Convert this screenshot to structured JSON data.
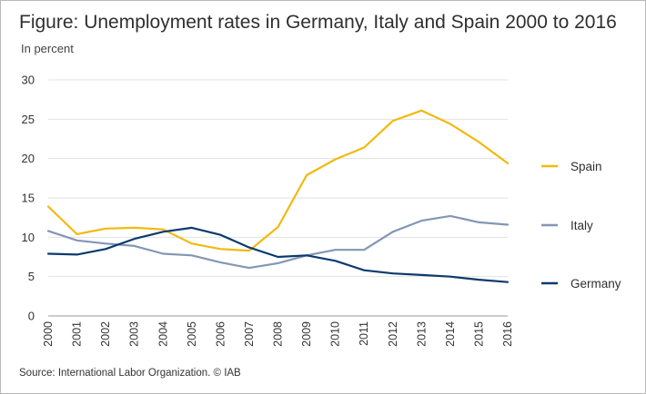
{
  "title": "Figure: Unemployment rates in Germany, Italy and Spain 2000 to 2016",
  "subtitle": "In percent",
  "source": "Source: International Labor Organization. © IAB",
  "chart_data": {
    "type": "line",
    "title": "Figure: Unemployment rates in Germany, Italy and Spain 2000 to 2016",
    "ylabel": "In percent",
    "xlabel": "",
    "x": [
      "2000",
      "2001",
      "2002",
      "2003",
      "2004",
      "2005",
      "2006",
      "2007",
      "2008",
      "2009",
      "2010",
      "2011",
      "2012",
      "2013",
      "2014",
      "2015",
      "2016"
    ],
    "ylim": [
      0,
      30
    ],
    "yticks": [
      0,
      5,
      10,
      15,
      20,
      25,
      30
    ],
    "grid": "horizontal",
    "legend": "right",
    "series": [
      {
        "name": "Spain",
        "color": "#f2b90f",
        "values": [
          13.9,
          10.4,
          11.1,
          11.2,
          11.0,
          9.2,
          8.5,
          8.3,
          11.3,
          17.9,
          19.9,
          21.4,
          24.8,
          26.1,
          24.4,
          22.1,
          19.4
        ]
      },
      {
        "name": "Italy",
        "color": "#8496b6",
        "values": [
          10.8,
          9.6,
          9.2,
          8.9,
          7.9,
          7.7,
          6.8,
          6.1,
          6.7,
          7.7,
          8.4,
          8.4,
          10.7,
          12.1,
          12.7,
          11.9,
          11.6
        ]
      },
      {
        "name": "Germany",
        "color": "#0b3a6e",
        "values": [
          7.9,
          7.8,
          8.5,
          9.8,
          10.7,
          11.2,
          10.3,
          8.7,
          7.5,
          7.7,
          7.0,
          5.8,
          5.4,
          5.2,
          5.0,
          4.6,
          4.3
        ]
      }
    ]
  }
}
